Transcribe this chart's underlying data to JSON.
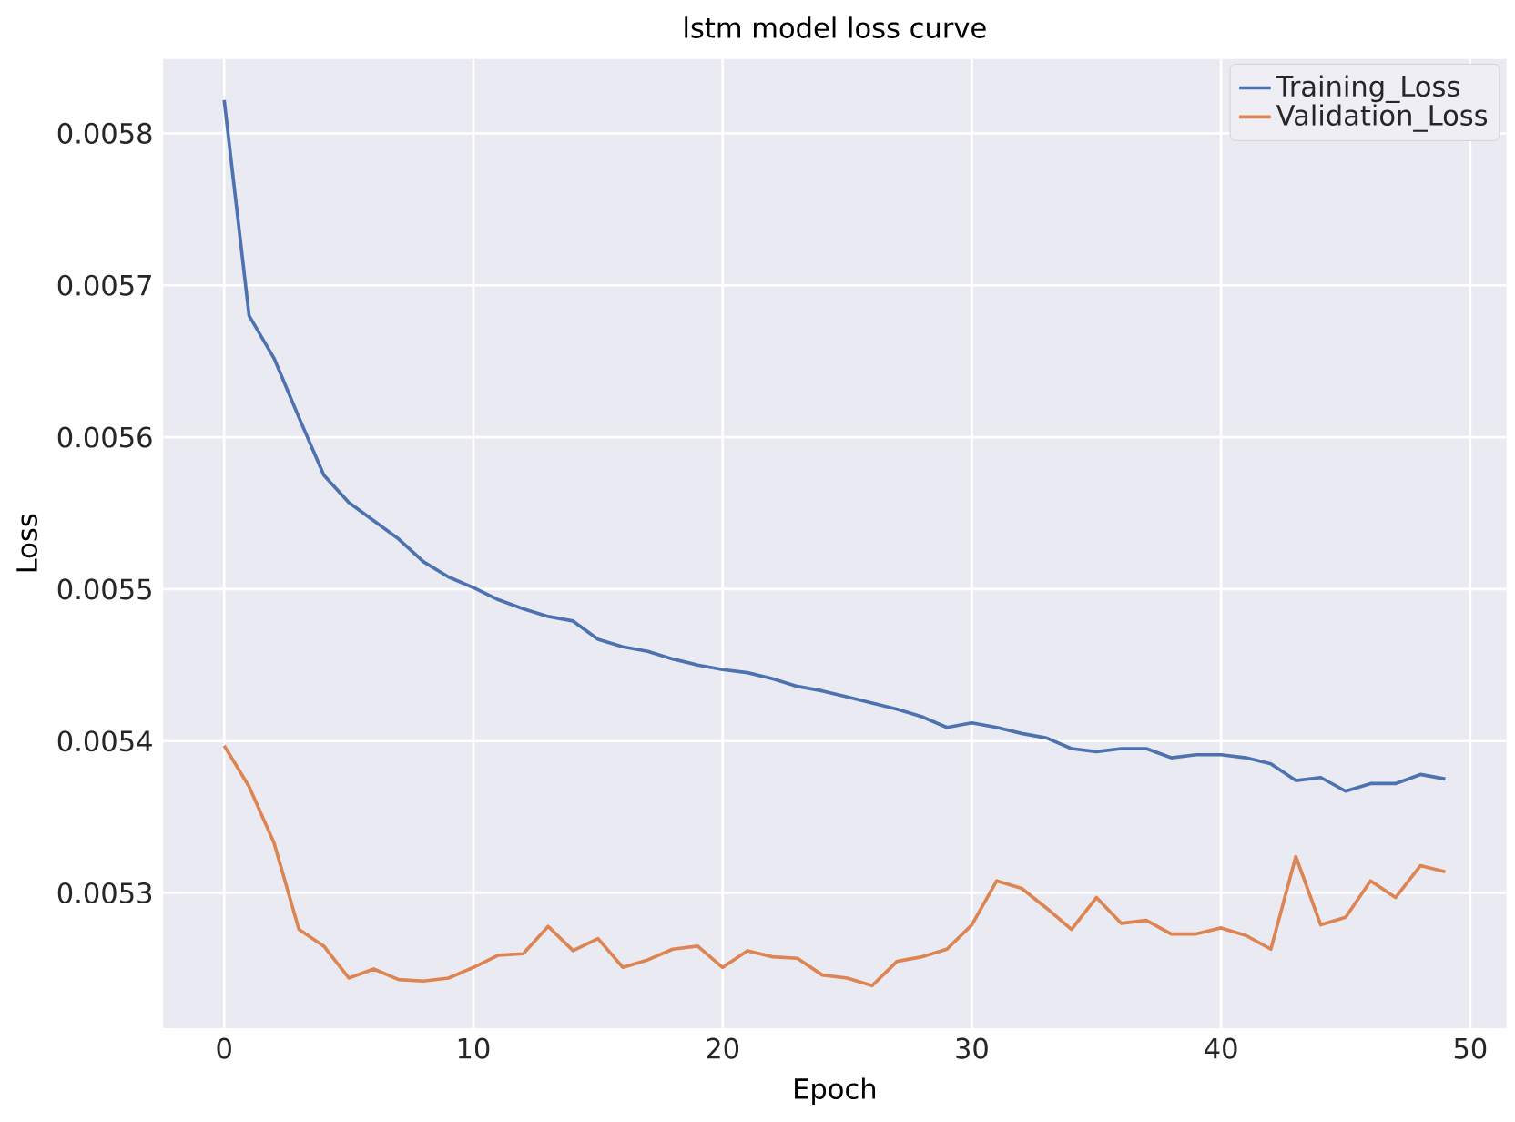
{
  "chart_data": {
    "type": "line",
    "title": "lstm model loss curve",
    "xlabel": "Epoch",
    "ylabel": "Loss",
    "x": [
      0,
      1,
      2,
      3,
      4,
      5,
      6,
      7,
      8,
      9,
      10,
      11,
      12,
      13,
      14,
      15,
      16,
      17,
      18,
      19,
      20,
      21,
      22,
      23,
      24,
      25,
      26,
      27,
      28,
      29,
      30,
      31,
      32,
      33,
      34,
      35,
      36,
      37,
      38,
      39,
      40,
      41,
      42,
      43,
      44,
      45,
      46,
      47,
      48,
      49
    ],
    "series": [
      {
        "name": "Training_Loss",
        "color": "#4c72b0",
        "values": [
          0.005822,
          0.00568,
          0.005652,
          0.005613,
          0.005575,
          0.005557,
          0.005545,
          0.005533,
          0.005518,
          0.005508,
          0.005501,
          0.005493,
          0.005487,
          0.005482,
          0.005479,
          0.005467,
          0.005462,
          0.005459,
          0.005454,
          0.00545,
          0.005447,
          0.005445,
          0.005441,
          0.005436,
          0.005433,
          0.005429,
          0.005425,
          0.005421,
          0.005416,
          0.005409,
          0.005412,
          0.005409,
          0.005405,
          0.005402,
          0.005395,
          0.005393,
          0.005395,
          0.005395,
          0.005389,
          0.005391,
          0.005391,
          0.005389,
          0.005385,
          0.005374,
          0.005376,
          0.005367,
          0.005372,
          0.005372,
          0.005378,
          0.005375
        ]
      },
      {
        "name": "Validation_Loss",
        "color": "#dd8452",
        "values": [
          0.005397,
          0.00537,
          0.005333,
          0.005276,
          0.005265,
          0.005244,
          0.00525,
          0.005243,
          0.005242,
          0.005244,
          0.005251,
          0.005259,
          0.00526,
          0.005278,
          0.005262,
          0.00527,
          0.005251,
          0.005256,
          0.005263,
          0.005265,
          0.005251,
          0.005262,
          0.005258,
          0.005257,
          0.005246,
          0.005244,
          0.005239,
          0.005255,
          0.005258,
          0.005263,
          0.005279,
          0.005308,
          0.005303,
          0.00529,
          0.005276,
          0.005297,
          0.00528,
          0.005282,
          0.005273,
          0.005273,
          0.005277,
          0.005272,
          0.005263,
          0.005324,
          0.005279,
          0.005284,
          0.005308,
          0.005297,
          0.005318,
          0.005314
        ]
      }
    ],
    "xlim": [
      -2.45,
      51.45
    ],
    "ylim": [
      0.005211,
      0.005849
    ],
    "xticks": [
      0,
      10,
      20,
      30,
      40,
      50
    ],
    "yticks": [
      0.0053,
      0.0054,
      0.0055,
      0.0056,
      0.0057,
      0.0058
    ],
    "grid": true,
    "legend": "top right"
  }
}
